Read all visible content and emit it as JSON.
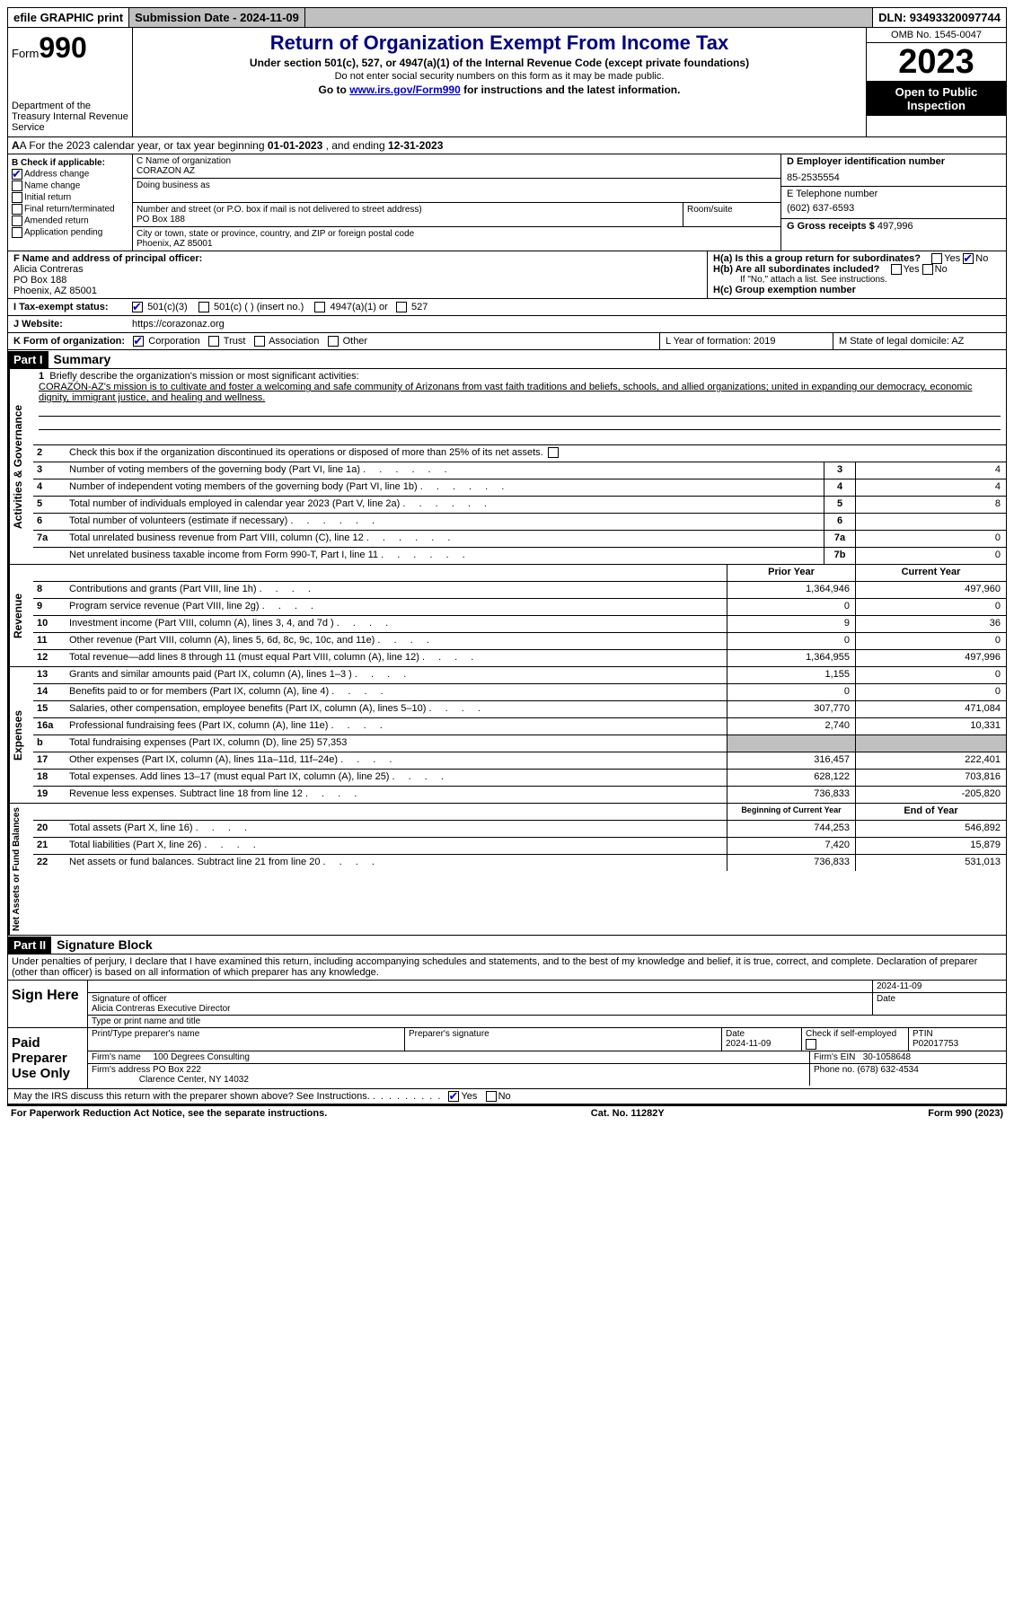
{
  "topbar": {
    "efile": "efile GRAPHIC print",
    "submission": "Submission Date - 2024-11-09",
    "dln": "DLN: 93493320097744"
  },
  "header": {
    "form_label": "Form",
    "form_num": "990",
    "dept": "Department of the Treasury Internal Revenue Service",
    "title": "Return of Organization Exempt From Income Tax",
    "sub1": "Under section 501(c), 527, or 4947(a)(1) of the Internal Revenue Code (except private foundations)",
    "sub2": "Do not enter social security numbers on this form as it may be made public.",
    "sub3_pre": "Go to ",
    "sub3_link": "www.irs.gov/Form990",
    "sub3_post": " for instructions and the latest information.",
    "omb": "OMB No. 1545-0047",
    "year": "2023",
    "open": "Open to Public Inspection"
  },
  "row_a": {
    "pre": "A For the 2023 calendar year, or tax year beginning ",
    "begin": "01-01-2023",
    "mid": " , and ending ",
    "end": "12-31-2023"
  },
  "col_b": {
    "label": "B Check if applicable:",
    "items": [
      {
        "label": "Address change",
        "checked": true
      },
      {
        "label": "Name change",
        "checked": false
      },
      {
        "label": "Initial return",
        "checked": false
      },
      {
        "label": "Final return/terminated",
        "checked": false
      },
      {
        "label": "Amended return",
        "checked": false
      },
      {
        "label": "Application pending",
        "checked": false
      }
    ]
  },
  "col_c": {
    "name_label": "C Name of organization",
    "name": "CORAZON AZ",
    "dba_label": "Doing business as",
    "addr_label": "Number and street (or P.O. box if mail is not delivered to street address)",
    "addr": "PO Box 188",
    "room_label": "Room/suite",
    "city_label": "City or town, state or province, country, and ZIP or foreign postal code",
    "city": "Phoenix, AZ  85001"
  },
  "col_d": {
    "ein_label": "D Employer identification number",
    "ein": "85-2535554",
    "tel_label": "E Telephone number",
    "tel": "(602) 637-6593",
    "gross_label": "G Gross receipts $",
    "gross": "497,996"
  },
  "row_f": {
    "label": "F  Name and address of principal officer:",
    "name": "Alicia Contreras",
    "addr1": "PO Box 188",
    "addr2": "Phoenix, AZ  85001",
    "ha": "H(a)  Is this a group return for subordinates?",
    "hb": "H(b)  Are all subordinates included?",
    "hb_note": "If \"No,\" attach a list. See instructions.",
    "hc": "H(c)  Group exemption number",
    "yes": "Yes",
    "no": "No"
  },
  "row_i": {
    "label": "I  Tax-exempt status:",
    "opts": [
      "501(c)(3)",
      "501(c) (  ) (insert no.)",
      "4947(a)(1) or",
      "527"
    ]
  },
  "row_j": {
    "label": "J  Website:",
    "url": "https://corazonaz.org"
  },
  "row_k": {
    "label": "K Form of organization:",
    "opts": [
      "Corporation",
      "Trust",
      "Association",
      "Other"
    ],
    "l": "L Year of formation: 2019",
    "m": "M State of legal domicile: AZ"
  },
  "part1": {
    "header": "Part I",
    "title": "Summary",
    "line1_label": "Briefly describe the organization's mission or most significant activities:",
    "mission": "CORAZÓN-AZ's mission is to cultivate and foster a welcoming and safe community of Arizonans from vast faith traditions and beliefs, schools, and allied organizations; united in expanding our democracy, economic dignity, immigrant justice, and healing and wellness.",
    "line2": "Check this box       if the organization discontinued its operations or disposed of more than 25% of its net assets.",
    "side_gov": "Activities & Governance",
    "side_rev": "Revenue",
    "side_exp": "Expenses",
    "side_net": "Net Assets or Fund Balances"
  },
  "gov_rows": [
    {
      "n": "3",
      "d": "Number of voting members of the governing body (Part VI, line 1a)",
      "box": "3",
      "v": "4"
    },
    {
      "n": "4",
      "d": "Number of independent voting members of the governing body (Part VI, line 1b)",
      "box": "4",
      "v": "4"
    },
    {
      "n": "5",
      "d": "Total number of individuals employed in calendar year 2023 (Part V, line 2a)",
      "box": "5",
      "v": "8"
    },
    {
      "n": "6",
      "d": "Total number of volunteers (estimate if necessary)",
      "box": "6",
      "v": ""
    },
    {
      "n": "7a",
      "d": "Total unrelated business revenue from Part VIII, column (C), line 12",
      "box": "7a",
      "v": "0"
    },
    {
      "n": "",
      "d": "Net unrelated business taxable income from Form 990-T, Part I, line 11",
      "box": "7b",
      "v": "0"
    }
  ],
  "rev_header": {
    "py": "Prior Year",
    "cy": "Current Year"
  },
  "rev_rows": [
    {
      "n": "8",
      "d": "Contributions and grants (Part VIII, line 1h)",
      "py": "1,364,946",
      "cy": "497,960"
    },
    {
      "n": "9",
      "d": "Program service revenue (Part VIII, line 2g)",
      "py": "0",
      "cy": "0"
    },
    {
      "n": "10",
      "d": "Investment income (Part VIII, column (A), lines 3, 4, and 7d )",
      "py": "9",
      "cy": "36"
    },
    {
      "n": "11",
      "d": "Other revenue (Part VIII, column (A), lines 5, 6d, 8c, 9c, 10c, and 11e)",
      "py": "0",
      "cy": "0"
    },
    {
      "n": "12",
      "d": "Total revenue—add lines 8 through 11 (must equal Part VIII, column (A), line 12)",
      "py": "1,364,955",
      "cy": "497,996"
    }
  ],
  "exp_rows": [
    {
      "n": "13",
      "d": "Grants and similar amounts paid (Part IX, column (A), lines 1–3 )",
      "py": "1,155",
      "cy": "0"
    },
    {
      "n": "14",
      "d": "Benefits paid to or for members (Part IX, column (A), line 4)",
      "py": "0",
      "cy": "0"
    },
    {
      "n": "15",
      "d": "Salaries, other compensation, employee benefits (Part IX, column (A), lines 5–10)",
      "py": "307,770",
      "cy": "471,084"
    },
    {
      "n": "16a",
      "d": "Professional fundraising fees (Part IX, column (A), line 11e)",
      "py": "2,740",
      "cy": "10,331"
    },
    {
      "n": "b",
      "d": "Total fundraising expenses (Part IX, column (D), line 25) 57,353",
      "py": "",
      "cy": "",
      "gray": true
    },
    {
      "n": "17",
      "d": "Other expenses (Part IX, column (A), lines 11a–11d, 11f–24e)",
      "py": "316,457",
      "cy": "222,401"
    },
    {
      "n": "18",
      "d": "Total expenses. Add lines 13–17 (must equal Part IX, column (A), line 25)",
      "py": "628,122",
      "cy": "703,816"
    },
    {
      "n": "19",
      "d": "Revenue less expenses. Subtract line 18 from line 12",
      "py": "736,833",
      "cy": "-205,820"
    }
  ],
  "net_header": {
    "py": "Beginning of Current Year",
    "cy": "End of Year"
  },
  "net_rows": [
    {
      "n": "20",
      "d": "Total assets (Part X, line 16)",
      "py": "744,253",
      "cy": "546,892"
    },
    {
      "n": "21",
      "d": "Total liabilities (Part X, line 26)",
      "py": "7,420",
      "cy": "15,879"
    },
    {
      "n": "22",
      "d": "Net assets or fund balances. Subtract line 21 from line 20",
      "py": "736,833",
      "cy": "531,013"
    }
  ],
  "part2": {
    "header": "Part II",
    "title": "Signature Block",
    "declare": "Under penalties of perjury, I declare that I have examined this return, including accompanying schedules and statements, and to the best of my knowledge and belief, it is true, correct, and complete. Declaration of preparer (other than officer) is based on all information of which preparer has any knowledge.",
    "sign_here": "Sign Here",
    "sig_officer": "Signature of officer",
    "sig_name": "Alicia Contreras  Executive Director",
    "sig_type": "Type or print name and title",
    "sig_date": "2024-11-09",
    "date_label": "Date",
    "paid": "Paid Preparer Use Only",
    "prep_name_label": "Print/Type preparer's name",
    "prep_sig_label": "Preparer's signature",
    "prep_date": "2024-11-09",
    "check_self": "Check        if self-employed",
    "ptin_label": "PTIN",
    "ptin": "P02017753",
    "firm_name_label": "Firm's name",
    "firm_name": "100 Degrees Consulting",
    "firm_ein_label": "Firm's EIN",
    "firm_ein": "30-1058648",
    "firm_addr_label": "Firm's address",
    "firm_addr": "PO Box 222",
    "firm_city": "Clarence Center, NY  14032",
    "phone_label": "Phone no.",
    "phone": "(678) 632-4534",
    "discuss": "May the IRS discuss this return with the preparer shown above? See Instructions."
  },
  "footer": {
    "left": "For Paperwork Reduction Act Notice, see the separate instructions.",
    "mid": "Cat. No. 11282Y",
    "right": "Form 990 (2023)"
  }
}
